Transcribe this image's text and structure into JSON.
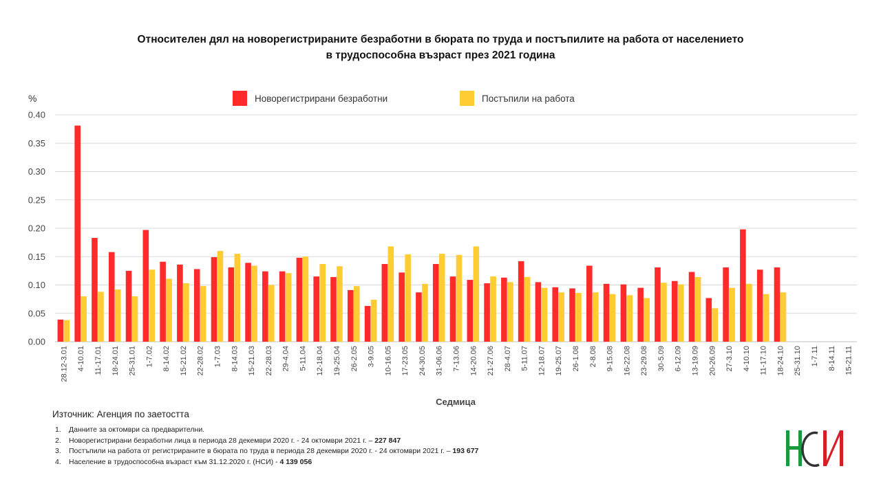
{
  "title_line1": "Относителен дял на новорегистрираните безработни в бюрата по труда и постъпилите на работа от населението",
  "title_line2": "в трудоспособна възраст през 2021 година",
  "colors": {
    "series1": "#ff2a2a",
    "series2": "#ffcc33",
    "grid": "#d9d9d9",
    "axis": "#bfbfbf"
  },
  "chart_data": {
    "type": "bar",
    "title": "Относителен дял на новорегистрираните безработни в бюрата по труда и постъпилите на работа от населението в трудоспособна възраст през 2021 година",
    "xlabel": "Седмица",
    "ylabel": "%",
    "ylim": [
      0,
      0.4
    ],
    "yticks": [
      "0.00",
      "0.05",
      "0.10",
      "0.15",
      "0.20",
      "0.25",
      "0.30",
      "0.35",
      "0.40"
    ],
    "grid": true,
    "legend_position": "top",
    "categories": [
      "28.12-3.01",
      "4-10.01",
      "11-17.01",
      "18-24.01",
      "25-31.01",
      "1-7.02",
      "8-14.02",
      "15-21.02",
      "22-28.02",
      "1-7.03",
      "8-14.03",
      "15-21.03",
      "22-28.03",
      "29-4.04",
      "5-11.04",
      "12-18.04",
      "19-25.04",
      "26-2.05",
      "3-9.05",
      "10-16.05",
      "17-23.05",
      "24-30.05",
      "31-06.06",
      "7-13.06",
      "14-20.06",
      "21-27.06",
      "28-4.07",
      "5-11.07",
      "12-18.07",
      "19-25.07",
      "26-1.08",
      "2-8.08",
      "9-15.08",
      "16-22.08",
      "23-29.08",
      "30-5.09",
      "6-12.09",
      "13-19.09",
      "20-26.09",
      "27-3.10",
      "4-10.10",
      "11-17.10",
      "18-24.10",
      "25-31.10",
      "1-7.11",
      "8-14.11",
      "15-21.11"
    ],
    "series": [
      {
        "name": "Новорегистрирани безработни",
        "values": [
          0.039,
          0.381,
          0.183,
          0.158,
          0.125,
          0.197,
          0.141,
          0.136,
          0.128,
          0.149,
          0.131,
          0.139,
          0.124,
          0.124,
          0.148,
          0.115,
          0.114,
          0.091,
          0.063,
          0.137,
          0.122,
          0.087,
          0.137,
          0.115,
          0.109,
          0.103,
          0.113,
          0.142,
          0.105,
          0.096,
          0.094,
          0.134,
          0.102,
          0.101,
          0.095,
          0.131,
          0.107,
          0.123,
          0.077,
          0.131,
          0.198,
          0.127,
          0.131,
          null,
          null,
          null,
          null
        ]
      },
      {
        "name": "Постъпили на работа",
        "values": [
          0.038,
          0.08,
          0.088,
          0.092,
          0.08,
          0.127,
          0.111,
          0.103,
          0.098,
          0.16,
          0.155,
          0.134,
          0.1,
          0.121,
          0.15,
          0.137,
          0.133,
          0.098,
          0.074,
          0.168,
          0.154,
          0.102,
          0.155,
          0.153,
          0.168,
          0.115,
          0.105,
          0.114,
          0.095,
          0.087,
          0.086,
          0.087,
          0.084,
          0.082,
          0.077,
          0.104,
          0.101,
          0.114,
          0.059,
          0.095,
          0.102,
          0.084,
          0.087,
          null,
          null,
          null,
          null
        ]
      }
    ]
  },
  "source": "Източник: Агенция по заетостта",
  "notes": [
    {
      "num": "1.",
      "text": "Данните за октомври са предварителни.",
      "bold": ""
    },
    {
      "num": "2.",
      "text": "Новорегистрирани безработни лица в периода  28 декември  2020 г. - 24 октомври 2021 г. – ",
      "bold": "227 847"
    },
    {
      "num": "3.",
      "text": "Постъпили на работа от регистрираните в бюрата по труда в периода  28 декември  2020 г. - 24 октомври 2021 г. – ",
      "bold": "193 677"
    },
    {
      "num": "4.",
      "text": "Население в трудоспособна възраст към 31.12.2020 г. (НСИ)  - ",
      "bold": "4 139 056"
    }
  ],
  "logo": {
    "name": "nsi-logo",
    "colors": [
      "#1a9a3c",
      "#d62027",
      "#333333"
    ]
  }
}
